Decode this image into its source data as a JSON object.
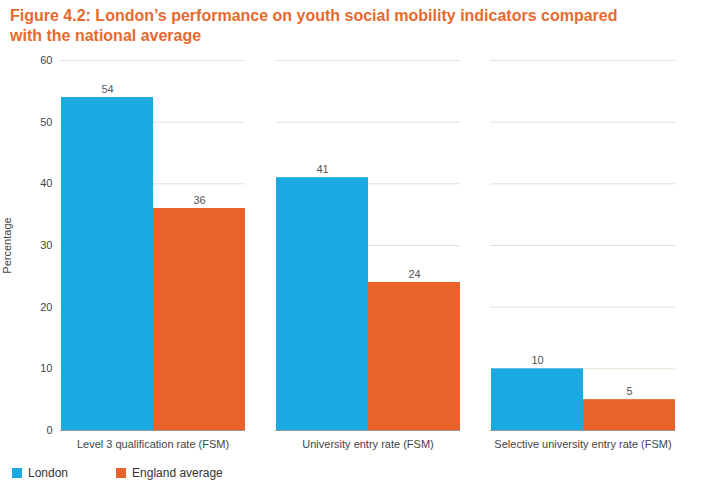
{
  "chart_data": {
    "type": "bar",
    "title": "Figure 4.2: London’s performance on youth social mobility indicators compared with the national average",
    "y_label": "Percentage",
    "categories": [
      "Level 3 qualification rate (FSM)",
      "University entry rate (FSM)",
      "Selective university entry rate (FSM)"
    ],
    "series": [
      {
        "name": "London",
        "color": "#1aa9e1",
        "values": [
          54,
          41,
          10
        ]
      },
      {
        "name": "England average",
        "color": "#e8622a",
        "values": [
          36,
          24,
          5
        ]
      }
    ],
    "ylim": [
      0,
      60
    ],
    "yticks": [
      0,
      10,
      20,
      30,
      40,
      50,
      60
    ],
    "grid": true,
    "data_labels": true,
    "legend": "bottom-left"
  }
}
